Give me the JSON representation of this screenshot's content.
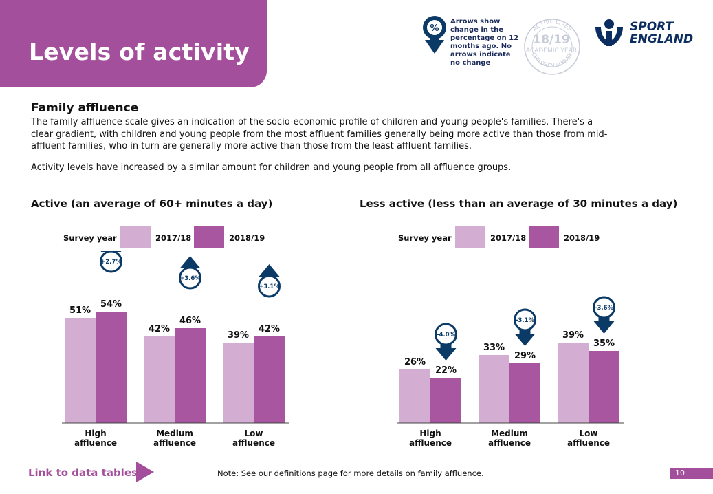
{
  "header": {
    "title": "Levels of activity"
  },
  "legend_note": {
    "symbol": "%",
    "text": "Arrows show change in the percentage on 12 months ago. No arrows indicate no change"
  },
  "survey_logo": {
    "ring_top": "ACTIVE LIVES",
    "year": "18/19",
    "sub": "ACADEMIC YEAR",
    "ring_bottom": "CHILDREN SURVEY"
  },
  "brand": {
    "line1": "SPORT",
    "line2": "ENGLAND"
  },
  "section": {
    "title": "Family affluence",
    "para1": "The family affluence scale gives an indication of the socio-economic profile of children and young people's families. There's a clear gradient, with children and young people from the most affluent families generally being more active than those from mid-affluent families, who in turn are generally more active than those from the least affluent families.",
    "para2": "Activity levels have increased by a similar amount for children and young people from all affluence groups."
  },
  "colors": {
    "accent": "#a34f9b",
    "light": "#d4aed2",
    "dark": "#a8569f",
    "arrow": "#0b3a66"
  },
  "chart_data": [
    {
      "type": "bar",
      "title": "Active (an average of 60+ minutes a day)",
      "legend_label": "Survey year",
      "categories": [
        [
          "High",
          "affluence"
        ],
        [
          "Medium",
          "affluence"
        ],
        [
          "Low",
          "affluence"
        ]
      ],
      "series": [
        {
          "name": "2017/18",
          "values": [
            51,
            42,
            39
          ]
        },
        {
          "name": "2018/19",
          "values": [
            54,
            46,
            42
          ]
        }
      ],
      "changes": [
        {
          "label": "+2.7%",
          "direction": "up"
        },
        {
          "label": "+3.6%",
          "direction": "up"
        },
        {
          "label": "+3.1%",
          "direction": "up"
        }
      ],
      "unit": "%",
      "ylim": [
        0,
        100
      ]
    },
    {
      "type": "bar",
      "title": "Less active (less than an average of 30 minutes a day)",
      "legend_label": "Survey year",
      "categories": [
        [
          "High",
          "affluence"
        ],
        [
          "Medium",
          "affluence"
        ],
        [
          "Low",
          "affluence"
        ]
      ],
      "series": [
        {
          "name": "2017/18",
          "values": [
            26,
            33,
            39
          ]
        },
        {
          "name": "2018/19",
          "values": [
            22,
            29,
            35
          ]
        }
      ],
      "changes": [
        {
          "label": "-4.0%",
          "direction": "down"
        },
        {
          "label": "-3.1%",
          "direction": "down"
        },
        {
          "label": "-3.6%",
          "direction": "down"
        }
      ],
      "unit": "%",
      "ylim": [
        0,
        100
      ]
    }
  ],
  "footer": {
    "link": "Link to data tables",
    "note_prefix": "Note: See our ",
    "note_link": "definitions",
    "note_suffix": " page for more details on family affluence.",
    "page": "10"
  }
}
